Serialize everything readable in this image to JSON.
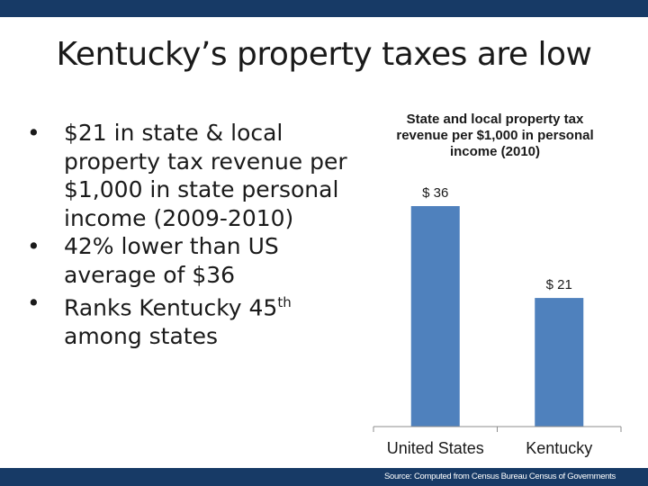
{
  "slide": {
    "title": "Kentucky’s property taxes are low",
    "bullets": [
      {
        "text": "$21 in state & local property tax revenue per $1,000 in state personal income (2009-2010)"
      },
      {
        "text": "42% lower than US average of $36"
      },
      {
        "text_before": "Ranks Kentucky 45",
        "superscript": "th",
        "text_after": " among states"
      }
    ],
    "bullet_symbol": "•",
    "source": "Source: Computed from Census Bureau Census of Governments",
    "bar_color": "#173a66"
  },
  "chart_data": {
    "type": "bar",
    "title": "State and local property tax revenue per $1,000 in personal income (2010)",
    "categories": [
      "United States",
      "Kentucky"
    ],
    "values": [
      36,
      21
    ],
    "data_labels": [
      "$ 36",
      "$ 21"
    ],
    "bar_color": "#4f81bd",
    "ylim": [
      0,
      36
    ],
    "grid": false,
    "legend": "none",
    "y_axis_visible": false
  }
}
